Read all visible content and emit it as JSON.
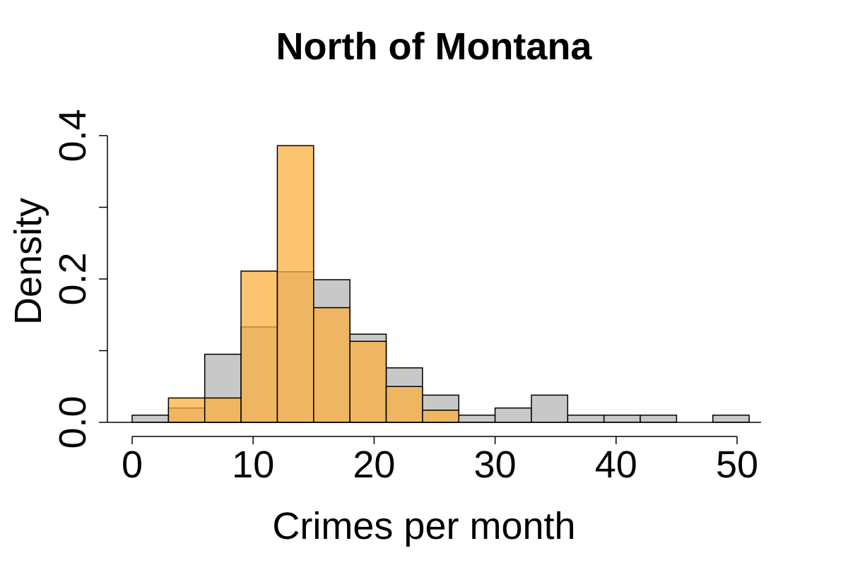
{
  "chart_data": {
    "type": "bar",
    "title": "North of Montana",
    "xlabel": "Crimes per month",
    "ylabel": "Density",
    "xlim": [
      0,
      51
    ],
    "ylim": [
      0,
      0.4
    ],
    "x_ticks": [
      "0",
      "10",
      "20",
      "30",
      "40",
      "50"
    ],
    "y_ticks": [
      "0.0",
      "0.2",
      "0.4"
    ],
    "bin_width": 3,
    "bin_starts": [
      0,
      3,
      6,
      9,
      12,
      15,
      18,
      21,
      24,
      27,
      30,
      33,
      36,
      39,
      42,
      45,
      48
    ],
    "series": [
      {
        "color": "#c8c8c8",
        "values": [
          0.01,
          0.02,
          0.095,
          0.133,
          0.21,
          0.199,
          0.123,
          0.076,
          0.038,
          0.01,
          0.02,
          0.038,
          0.01,
          0.01,
          0.01,
          0,
          0.01
        ]
      },
      {
        "color": "#fbb040",
        "opacity": 0.75,
        "values": [
          0,
          0.034,
          0.034,
          0.211,
          0.386,
          0.16,
          0.113,
          0.05,
          0.017,
          0,
          0,
          0,
          0,
          0,
          0,
          0,
          0
        ]
      }
    ],
    "grid": false,
    "legend": "none"
  }
}
